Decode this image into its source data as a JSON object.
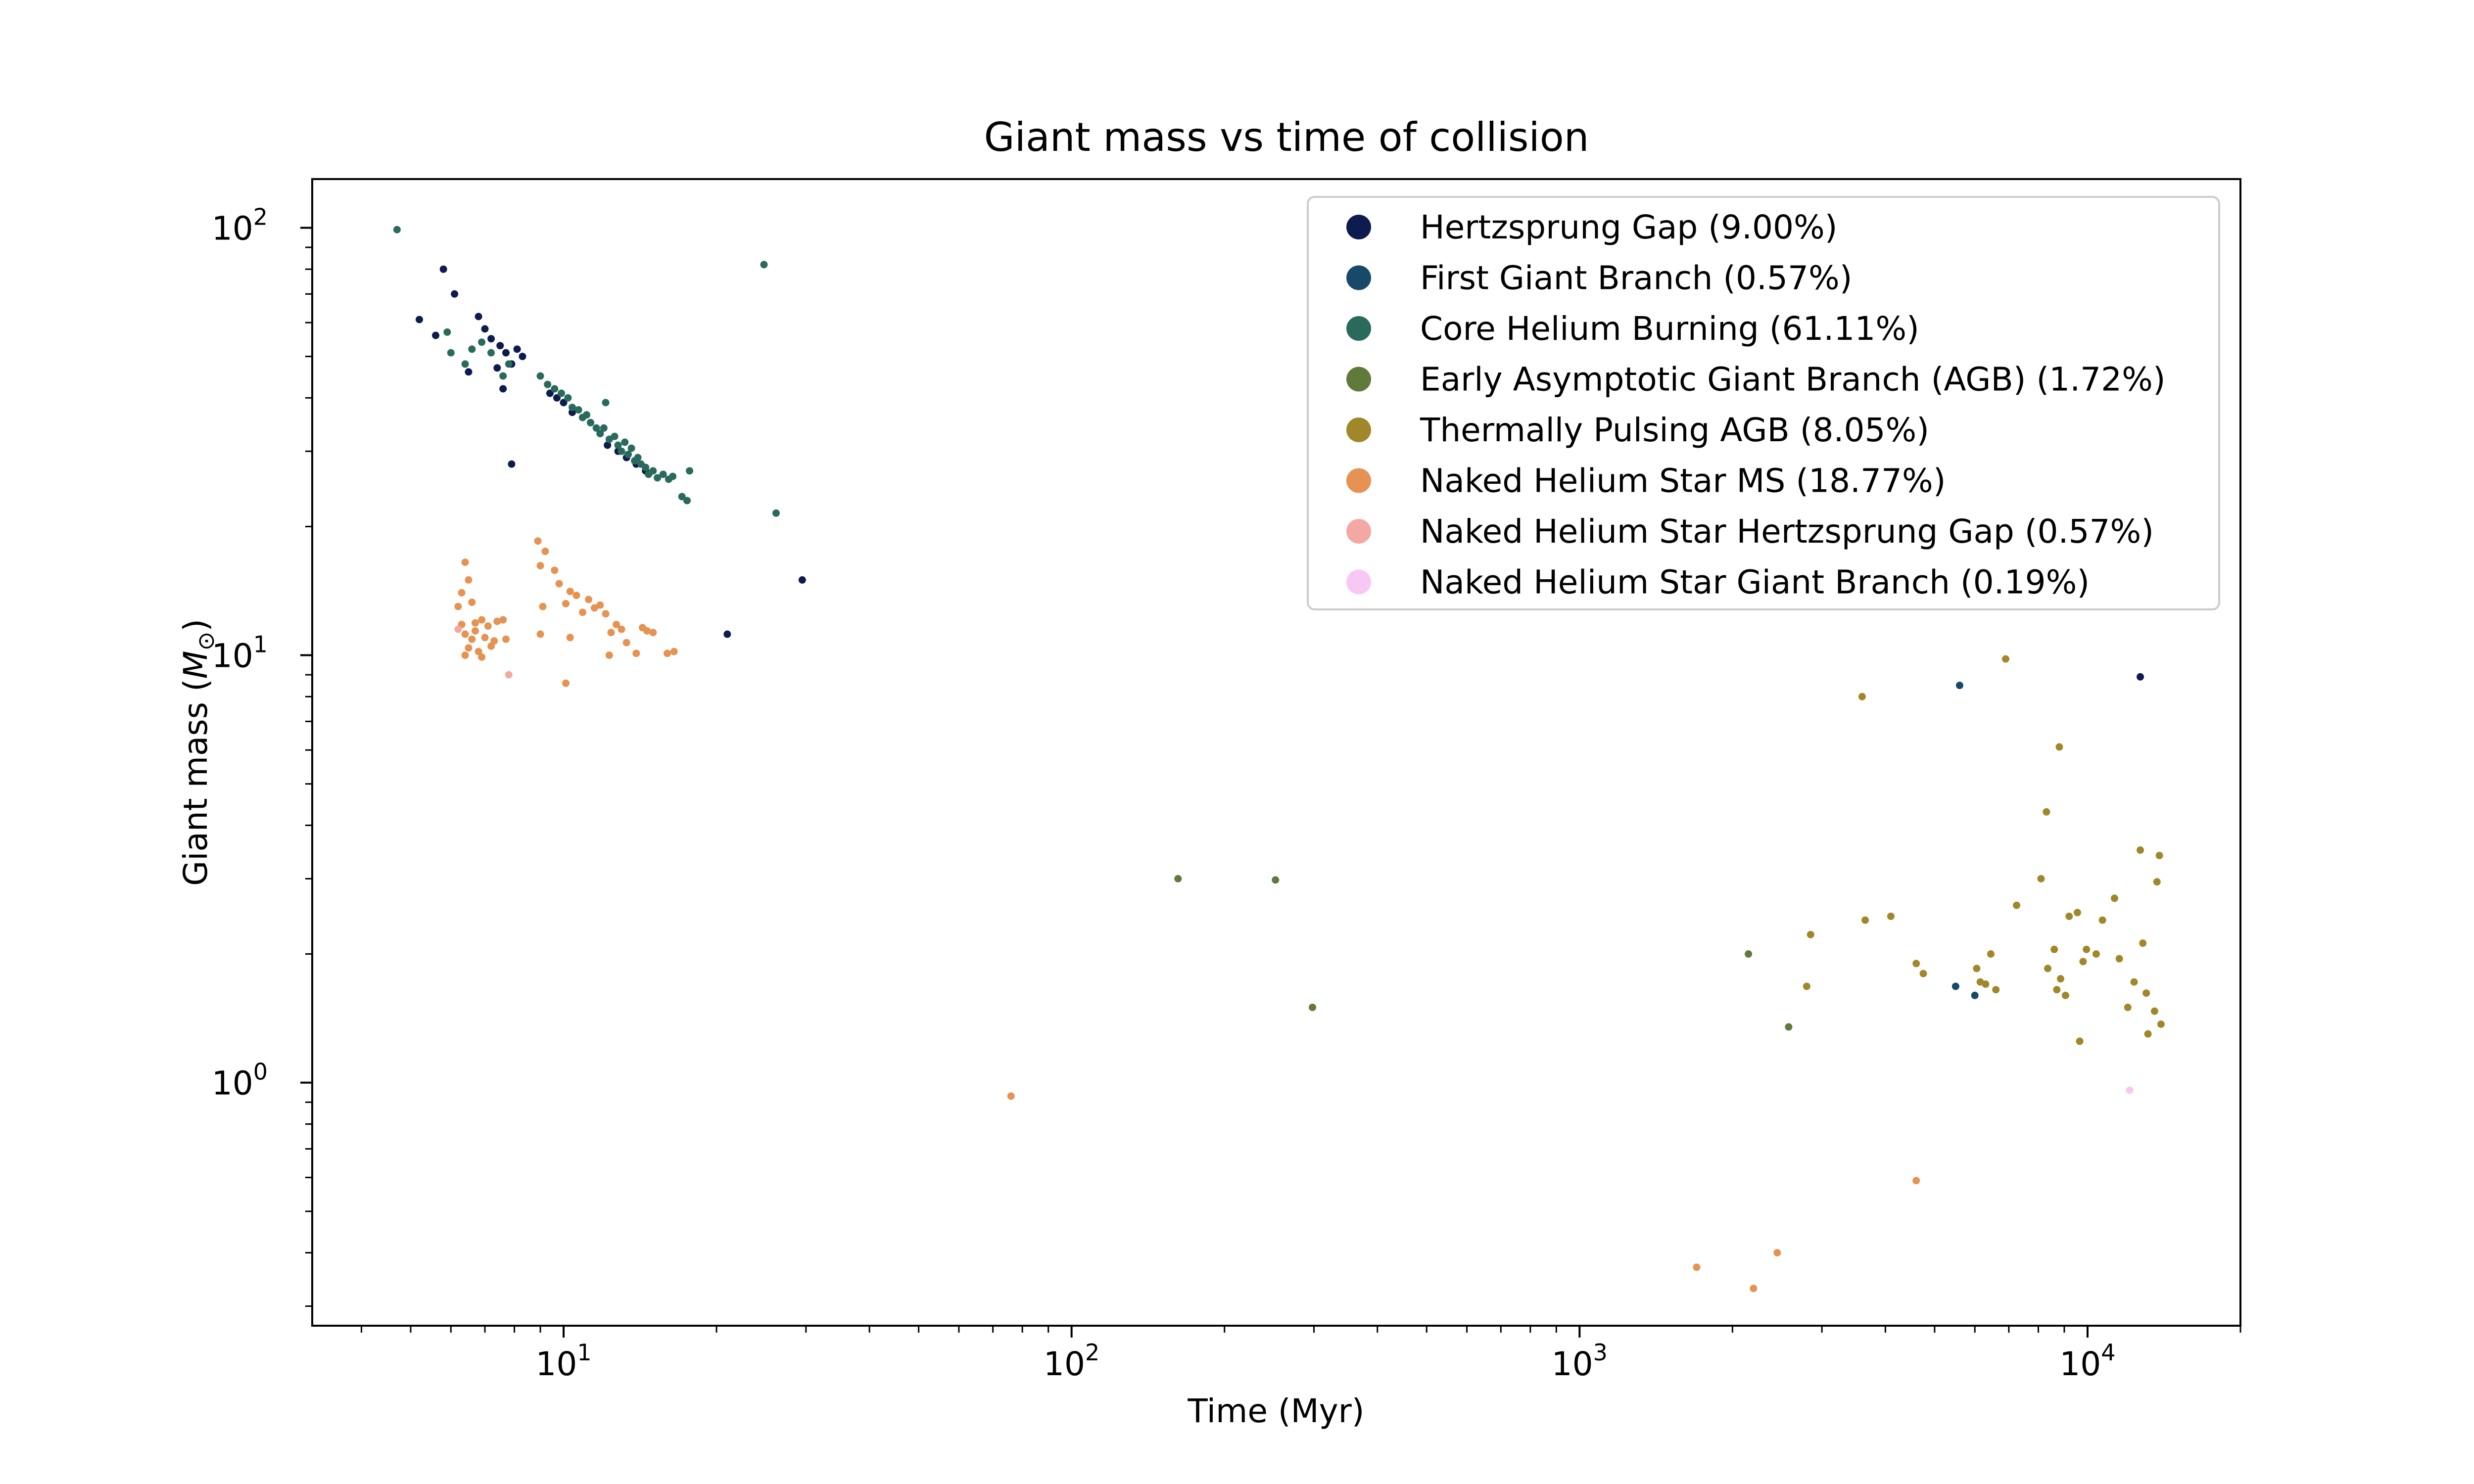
{
  "chart_data": {
    "type": "scatter",
    "title": "Giant mass vs time of collision",
    "xlabel": "Time (Myr)",
    "ylabel": "Giant mass (",
    "ylabel_symbol": "M",
    "ylabel_subscript": "⊙",
    "ylabel_close": ")",
    "x_scale": "log",
    "y_scale": "log",
    "xlim": [
      3.2,
      20000
    ],
    "ylim": [
      0.27,
      130
    ],
    "grid": false,
    "legend_position": "top-right",
    "x_ticks": [
      {
        "value": 10,
        "base": "10",
        "exp": "1"
      },
      {
        "value": 100,
        "base": "10",
        "exp": "2"
      },
      {
        "value": 1000,
        "base": "10",
        "exp": "3"
      },
      {
        "value": 10000,
        "base": "10",
        "exp": "4"
      }
    ],
    "y_ticks": [
      {
        "value": 1,
        "base": "10",
        "exp": "0"
      },
      {
        "value": 10,
        "base": "10",
        "exp": "1"
      },
      {
        "value": 100,
        "base": "10",
        "exp": "2"
      }
    ],
    "series": [
      {
        "name": "Hertzsprung Gap (9.00%)",
        "color": "#0d1b4f",
        "points": [
          [
            5.2,
            61
          ],
          [
            5.6,
            56
          ],
          [
            5.8,
            80
          ],
          [
            6.1,
            70
          ],
          [
            6.5,
            46
          ],
          [
            6.8,
            62
          ],
          [
            7.0,
            58
          ],
          [
            7.2,
            55
          ],
          [
            7.4,
            47
          ],
          [
            7.5,
            53
          ],
          [
            7.7,
            51
          ],
          [
            7.6,
            42
          ],
          [
            7.9,
            48
          ],
          [
            8.1,
            52
          ],
          [
            8.3,
            50
          ],
          [
            7.9,
            28
          ],
          [
            9.4,
            41
          ],
          [
            9.7,
            40
          ],
          [
            10.0,
            39
          ],
          [
            10.4,
            37
          ],
          [
            10.9,
            36
          ],
          [
            11.3,
            35
          ],
          [
            11.8,
            33
          ],
          [
            12.2,
            31
          ],
          [
            12.8,
            30
          ],
          [
            13.3,
            29
          ],
          [
            13.9,
            28
          ],
          [
            14.5,
            27
          ],
          [
            21,
            11.2
          ],
          [
            29.5,
            15
          ],
          [
            12700,
            8.9
          ]
        ]
      },
      {
        "name": "First Giant Branch (0.57%)",
        "color": "#184968",
        "points": [
          [
            5600,
            8.5
          ],
          [
            5500,
            1.68
          ],
          [
            6000,
            1.6
          ]
        ]
      },
      {
        "name": "Core Helium Burning (61.11%)",
        "color": "#2a6a5c",
        "points": [
          [
            4.7,
            99
          ],
          [
            5.9,
            57
          ],
          [
            6.0,
            51
          ],
          [
            6.4,
            48
          ],
          [
            6.6,
            52
          ],
          [
            6.9,
            54
          ],
          [
            7.2,
            51
          ],
          [
            7.6,
            45
          ],
          [
            7.8,
            48
          ],
          [
            9.0,
            45
          ],
          [
            9.3,
            43
          ],
          [
            9.6,
            42
          ],
          [
            9.9,
            41
          ],
          [
            10.2,
            40
          ],
          [
            10.4,
            38
          ],
          [
            10.7,
            37.5
          ],
          [
            10.9,
            36
          ],
          [
            11.1,
            36.5
          ],
          [
            11.3,
            35
          ],
          [
            11.6,
            34
          ],
          [
            11.8,
            33
          ],
          [
            12.0,
            34
          ],
          [
            12.1,
            39
          ],
          [
            12.3,
            32
          ],
          [
            12.6,
            32.5
          ],
          [
            12.8,
            31
          ],
          [
            13.0,
            30
          ],
          [
            13.2,
            31.5
          ],
          [
            13.4,
            29.5
          ],
          [
            13.6,
            30.5
          ],
          [
            13.8,
            28.5
          ],
          [
            14.0,
            29
          ],
          [
            14.2,
            28
          ],
          [
            14.5,
            27.5
          ],
          [
            14.7,
            26.5
          ],
          [
            15.0,
            27
          ],
          [
            15.3,
            26
          ],
          [
            15.7,
            26.5
          ],
          [
            16.1,
            25.8
          ],
          [
            16.4,
            26.2
          ],
          [
            17.1,
            23.5
          ],
          [
            17.5,
            23
          ],
          [
            17.7,
            27
          ],
          [
            24.8,
            82
          ],
          [
            26.2,
            21.5
          ]
        ]
      },
      {
        "name": "Early Asymptotic Giant Branch (AGB) (1.72%)",
        "color": "#5f7a3a",
        "points": [
          [
            162,
            3.0
          ],
          [
            252,
            2.98
          ],
          [
            298,
            1.5
          ],
          [
            2150,
            2.0
          ],
          [
            2580,
            1.35
          ]
        ]
      },
      {
        "name": "Thermally Pulsing AGB (8.05%)",
        "color": "#a0882a",
        "points": [
          [
            3600,
            8.0
          ],
          [
            6900,
            9.8
          ],
          [
            8800,
            6.1
          ],
          [
            8300,
            4.3
          ],
          [
            2800,
            1.68
          ],
          [
            2850,
            2.22
          ],
          [
            3650,
            2.4
          ],
          [
            4100,
            2.45
          ],
          [
            4600,
            1.9
          ],
          [
            4750,
            1.8
          ],
          [
            6050,
            1.85
          ],
          [
            6150,
            1.72
          ],
          [
            6450,
            2.0
          ],
          [
            6600,
            1.65
          ],
          [
            6300,
            1.7
          ],
          [
            7250,
            2.6
          ],
          [
            8100,
            3.0
          ],
          [
            8350,
            1.85
          ],
          [
            8700,
            1.65
          ],
          [
            8600,
            2.05
          ],
          [
            8850,
            1.75
          ],
          [
            9050,
            1.6
          ],
          [
            9200,
            2.45
          ],
          [
            9550,
            2.5
          ],
          [
            9650,
            1.25
          ],
          [
            9800,
            1.92
          ],
          [
            9950,
            2.05
          ],
          [
            10700,
            2.4
          ],
          [
            11300,
            2.7
          ],
          [
            11550,
            1.95
          ],
          [
            12000,
            1.5
          ],
          [
            12350,
            1.72
          ],
          [
            12700,
            3.5
          ],
          [
            12850,
            2.12
          ],
          [
            13050,
            1.62
          ],
          [
            13150,
            1.3
          ],
          [
            13550,
            1.47
          ],
          [
            13700,
            2.95
          ],
          [
            13850,
            3.4
          ],
          [
            13950,
            1.37
          ],
          [
            10400,
            2.0
          ]
        ]
      },
      {
        "name": "Naked Helium Star MS (18.77%)",
        "color": "#e59252",
        "points": [
          [
            6.2,
            13.0
          ],
          [
            6.3,
            14.0
          ],
          [
            6.4,
            16.5
          ],
          [
            6.3,
            11.8
          ],
          [
            6.5,
            10.4
          ],
          [
            6.4,
            11.2
          ],
          [
            6.6,
            10.9
          ],
          [
            6.7,
            11.9
          ],
          [
            6.8,
            10.2
          ],
          [
            6.9,
            12.1
          ],
          [
            7.0,
            11.0
          ],
          [
            7.1,
            11.7
          ],
          [
            7.2,
            10.5
          ],
          [
            7.4,
            12.0
          ],
          [
            7.6,
            12.1
          ],
          [
            7.7,
            10.9
          ],
          [
            6.5,
            15.0
          ],
          [
            6.6,
            13.3
          ],
          [
            6.9,
            9.9
          ],
          [
            7.3,
            10.8
          ],
          [
            6.4,
            10.0
          ],
          [
            6.7,
            11.4
          ],
          [
            8.9,
            18.5
          ],
          [
            9.0,
            16.2
          ],
          [
            9.2,
            17.5
          ],
          [
            9.1,
            13.0
          ],
          [
            9.6,
            15.8
          ],
          [
            9.8,
            14.7
          ],
          [
            10.1,
            13.2
          ],
          [
            10.3,
            14.1
          ],
          [
            10.6,
            13.8
          ],
          [
            10.9,
            12.6
          ],
          [
            11.2,
            13.5
          ],
          [
            11.5,
            12.9
          ],
          [
            11.8,
            13.1
          ],
          [
            12.1,
            12.5
          ],
          [
            12.4,
            11.3
          ],
          [
            12.7,
            11.8
          ],
          [
            13.0,
            11.5
          ],
          [
            13.3,
            10.7
          ],
          [
            13.9,
            10.1
          ],
          [
            14.3,
            11.6
          ],
          [
            14.6,
            11.4
          ],
          [
            15.0,
            11.3
          ],
          [
            16.0,
            10.1
          ],
          [
            16.5,
            10.2
          ],
          [
            9.0,
            11.2
          ],
          [
            10.1,
            8.6
          ],
          [
            12.3,
            10.0
          ],
          [
            10.3,
            11.0
          ],
          [
            76,
            0.93
          ],
          [
            1700,
            0.37
          ],
          [
            2200,
            0.33
          ],
          [
            2450,
            0.4
          ],
          [
            4600,
            0.59
          ]
        ]
      },
      {
        "name": "Naked Helium Star Hertzsprung Gap (0.57%)",
        "color": "#f4a8a4",
        "points": [
          [
            7.8,
            9.0
          ],
          [
            6.2,
            11.5
          ]
        ]
      },
      {
        "name": "Naked Helium Star Giant Branch (0.19%)",
        "color": "#f8c8f4",
        "points": [
          [
            12100,
            0.96
          ]
        ]
      }
    ]
  }
}
